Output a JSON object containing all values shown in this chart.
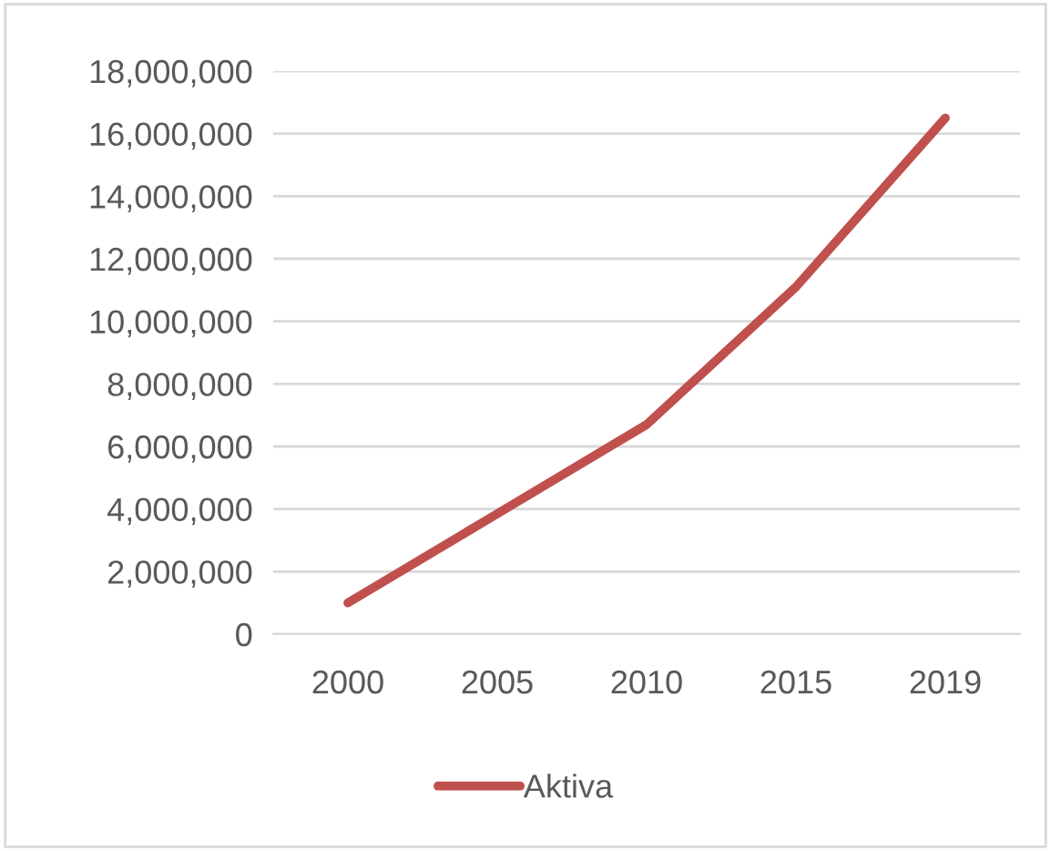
{
  "chart_data": {
    "type": "line",
    "categories": [
      "2000",
      "2005",
      "2010",
      "2015",
      "2019"
    ],
    "series": [
      {
        "name": "Aktiva",
        "color": "#c0504d",
        "values": [
          1000000,
          3850000,
          6700000,
          11100000,
          16500000
        ]
      }
    ],
    "ylim": [
      0,
      18000000
    ],
    "yticks": [
      {
        "value": 0,
        "label": "0"
      },
      {
        "value": 2000000,
        "label": "2,000,000"
      },
      {
        "value": 4000000,
        "label": "4,000,000"
      },
      {
        "value": 6000000,
        "label": "6,000,000"
      },
      {
        "value": 8000000,
        "label": "8,000,000"
      },
      {
        "value": 10000000,
        "label": "10,000,000"
      },
      {
        "value": 12000000,
        "label": "12,000,000"
      },
      {
        "value": 14000000,
        "label": "14,000,000"
      },
      {
        "value": 16000000,
        "label": "16,000,000"
      },
      {
        "value": 18000000,
        "label": "18,000,000"
      }
    ],
    "grid": "y",
    "legend": "bottom",
    "marker": "none",
    "line_style": "solid"
  }
}
